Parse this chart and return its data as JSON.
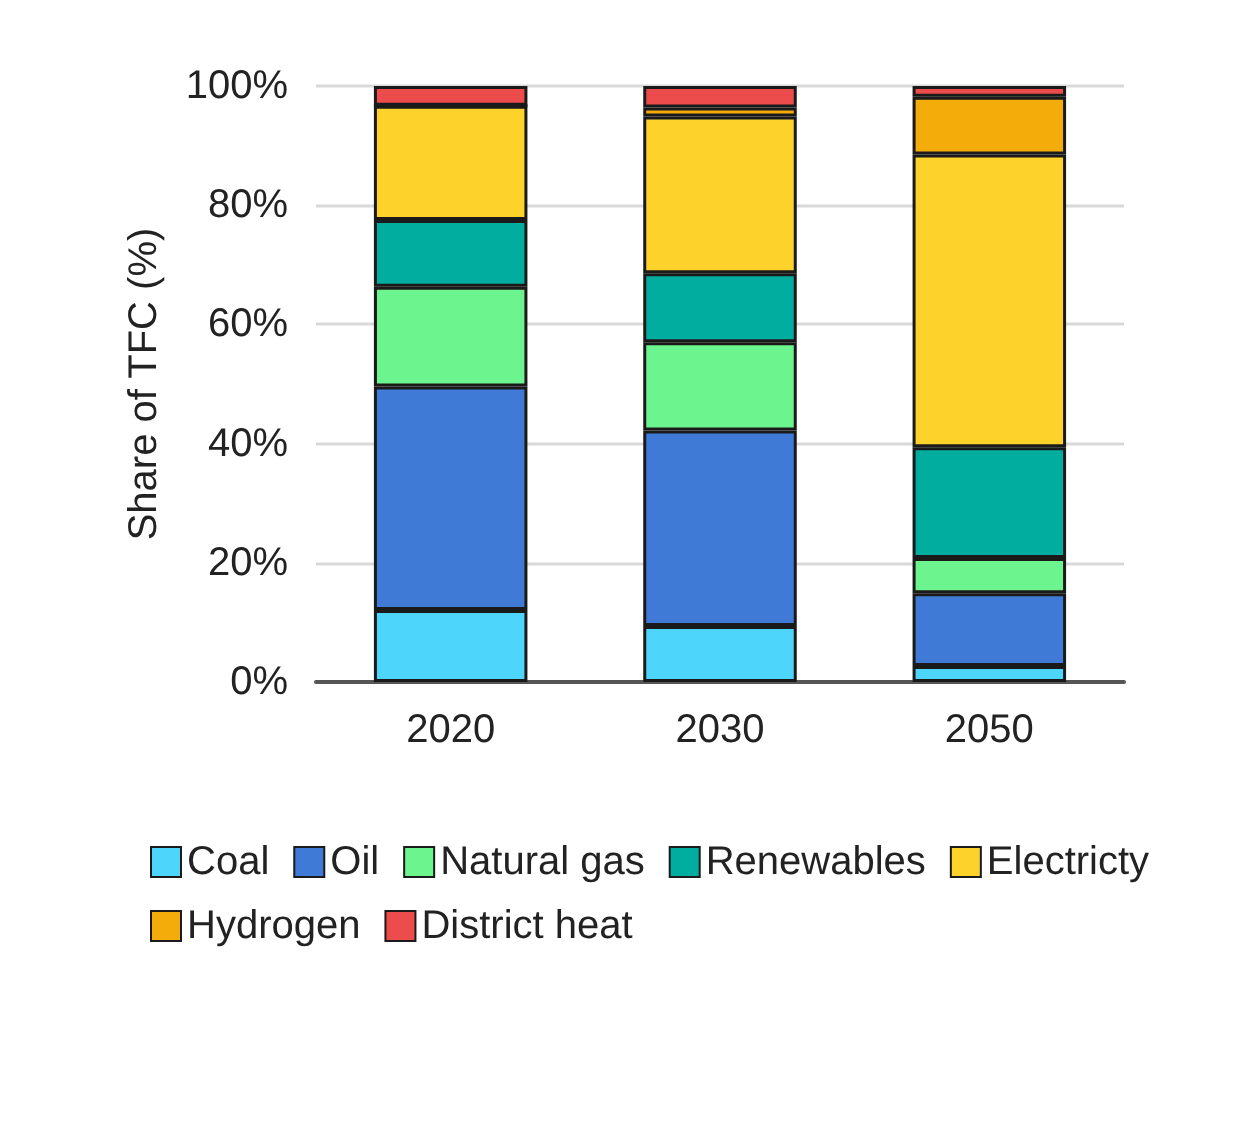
{
  "chart_data": {
    "type": "bar",
    "stacked": true,
    "ylabel": "Share of TFC (%)",
    "categories": [
      "2020",
      "2030",
      "2050"
    ],
    "series": [
      {
        "name": "Coal",
        "color": "#4dd5fb",
        "values": [
          12.1,
          9.4,
          2.7
        ]
      },
      {
        "name": "Oil",
        "color": "#3f7bd6",
        "values": [
          37.5,
          32.8,
          12.2
        ]
      },
      {
        "name": "Natural gas",
        "color": "#6cf48f",
        "values": [
          16.7,
          14.8,
          5.9
        ]
      },
      {
        "name": "Renewables",
        "color": "#00ad9f",
        "values": [
          11.2,
          11.6,
          18.6
        ]
      },
      {
        "name": "Electricty",
        "color": "#fdd22b",
        "values": [
          19.2,
          26.3,
          49.1
        ]
      },
      {
        "name": "Hydrogen",
        "color": "#f4ac0a",
        "values": [
          0,
          1.5,
          9.7
        ]
      },
      {
        "name": "District heat",
        "color": "#ec4c4c",
        "values": [
          3.3,
          3.6,
          1.8
        ]
      }
    ],
    "ylim": [
      0,
      100
    ],
    "yticks": [
      {
        "value": 0,
        "label": "0%"
      },
      {
        "value": 20,
        "label": "20%"
      },
      {
        "value": 40,
        "label": "40%"
      },
      {
        "value": 60,
        "label": "60%"
      },
      {
        "value": 80,
        "label": "80%"
      },
      {
        "value": 100,
        "label": "100%"
      }
    ],
    "grid": "y",
    "legend": "bottom"
  }
}
